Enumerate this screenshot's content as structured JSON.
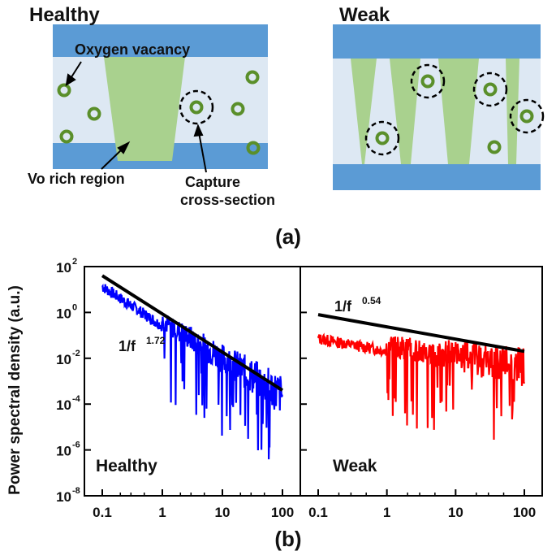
{
  "panel_a": {
    "healthy": {
      "title": "Healthy",
      "label_vacancy": "Oxygen vacancy",
      "label_vo_rich": "Vo rich region",
      "label_capture_1": "Capture",
      "label_capture_2": "cross-section"
    },
    "weak": {
      "title": "Weak"
    },
    "caption": "(a)"
  },
  "panel_b": {
    "caption": "(b)",
    "ylabel": "Power spectral density (a.u.)",
    "y_ticks": [
      "10",
      "10",
      "10",
      "10",
      "10",
      "10"
    ],
    "y_tick_exps": [
      "2",
      "0",
      "-2",
      "-4",
      "-6",
      "-8"
    ],
    "x_ticks": [
      "0.1",
      "1",
      "10",
      "100"
    ],
    "colors": {
      "healthy": "#0000ff",
      "weak": "#ff0000",
      "fit": "#000000"
    }
  },
  "chart_data": [
    {
      "type": "line",
      "name": "Healthy",
      "xscale": "log",
      "yscale": "log",
      "xlim": [
        0.1,
        100
      ],
      "ylim": [
        1e-08,
        100
      ],
      "series_label": "Healthy",
      "fit_label_base": "1/f",
      "fit_label_exp": "1.72",
      "fit_slope": -1.72,
      "fit_points": [
        [
          0.1,
          40
        ],
        [
          100,
          0.0004
        ]
      ],
      "noise": {
        "start_level": 15,
        "slope": -1.72,
        "x_start": 0.1,
        "x_end": 100
      }
    },
    {
      "type": "line",
      "name": "Weak",
      "xscale": "log",
      "yscale": "log",
      "xlim": [
        0.1,
        100
      ],
      "ylim": [
        1e-08,
        100
      ],
      "series_label": "Weak",
      "fit_label_base": "1/f",
      "fit_label_exp": "0.54",
      "fit_slope": -0.54,
      "fit_points": [
        [
          0.1,
          0.8
        ],
        [
          100,
          0.02
        ]
      ],
      "noise": {
        "start_level": 0.08,
        "slope": -0.54,
        "x_start": 0.1,
        "x_end": 100
      }
    }
  ]
}
